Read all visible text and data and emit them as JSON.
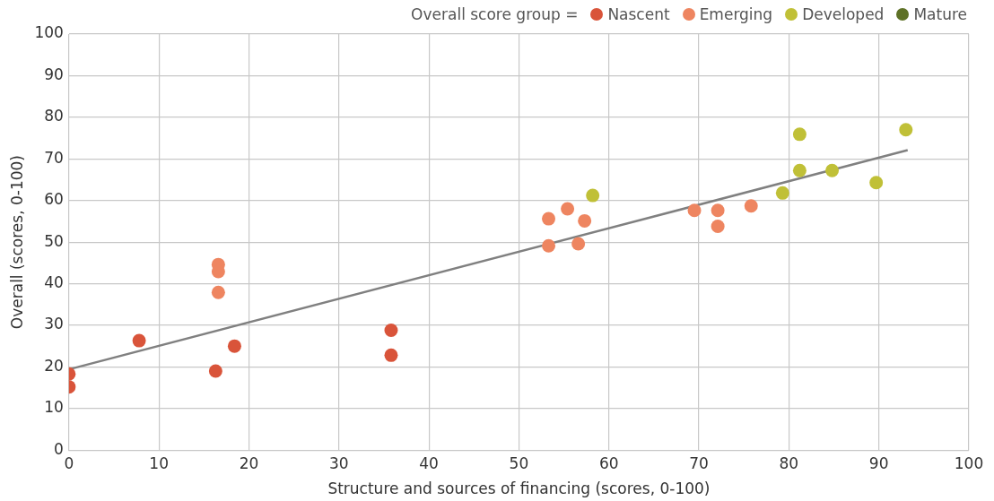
{
  "chart_data": {
    "type": "scatter",
    "xlabel": "Structure and sources of financing (scores, 0-100)",
    "ylabel": "Overall (scores, 0-100)",
    "legend_title": "Overall score group =",
    "xlim": [
      0,
      100
    ],
    "xticks": [
      0,
      10,
      20,
      30,
      40,
      50,
      60,
      70,
      80,
      90,
      100
    ],
    "ylim": [
      0,
      100
    ],
    "yticks": [
      0,
      10,
      20,
      30,
      40,
      50,
      60,
      70,
      80,
      90,
      100
    ],
    "grid": true,
    "legend": "top right",
    "marker": "circle",
    "series": [
      {
        "name": "Nascent",
        "color": "#d9543a",
        "x": [
          0,
          0,
          7.8,
          16.3,
          18.4,
          35.8,
          35.8
        ],
        "values": [
          18.3,
          15.2,
          26.3,
          19,
          25,
          28.8,
          22.8
        ]
      },
      {
        "name": "Emerging",
        "color": "#ee8560",
        "x": [
          16.6,
          16.6,
          16.6,
          53.3,
          53.3,
          55.4,
          57.3,
          56.6,
          69.5,
          72.1,
          72.1,
          75.8
        ],
        "values": [
          44.6,
          42.9,
          37.9,
          55.6,
          49.1,
          58,
          55.1,
          49.6,
          57.6,
          57.6,
          53.8,
          58.7
        ]
      },
      {
        "name": "Developed",
        "color": "#c0c037",
        "x": [
          58.2,
          81.2,
          81.2,
          84.8,
          79.3,
          89.7,
          93
        ],
        "values": [
          61.2,
          75.9,
          67.2,
          67.2,
          61.8,
          64.3,
          77
        ]
      },
      {
        "name": "Mature",
        "color": "#5e7126"
      },
      {
        "type": "line",
        "marker": "none",
        "color": "#808080",
        "x": [
          0,
          93.2
        ],
        "values": [
          19.4,
          72.1
        ]
      }
    ]
  }
}
